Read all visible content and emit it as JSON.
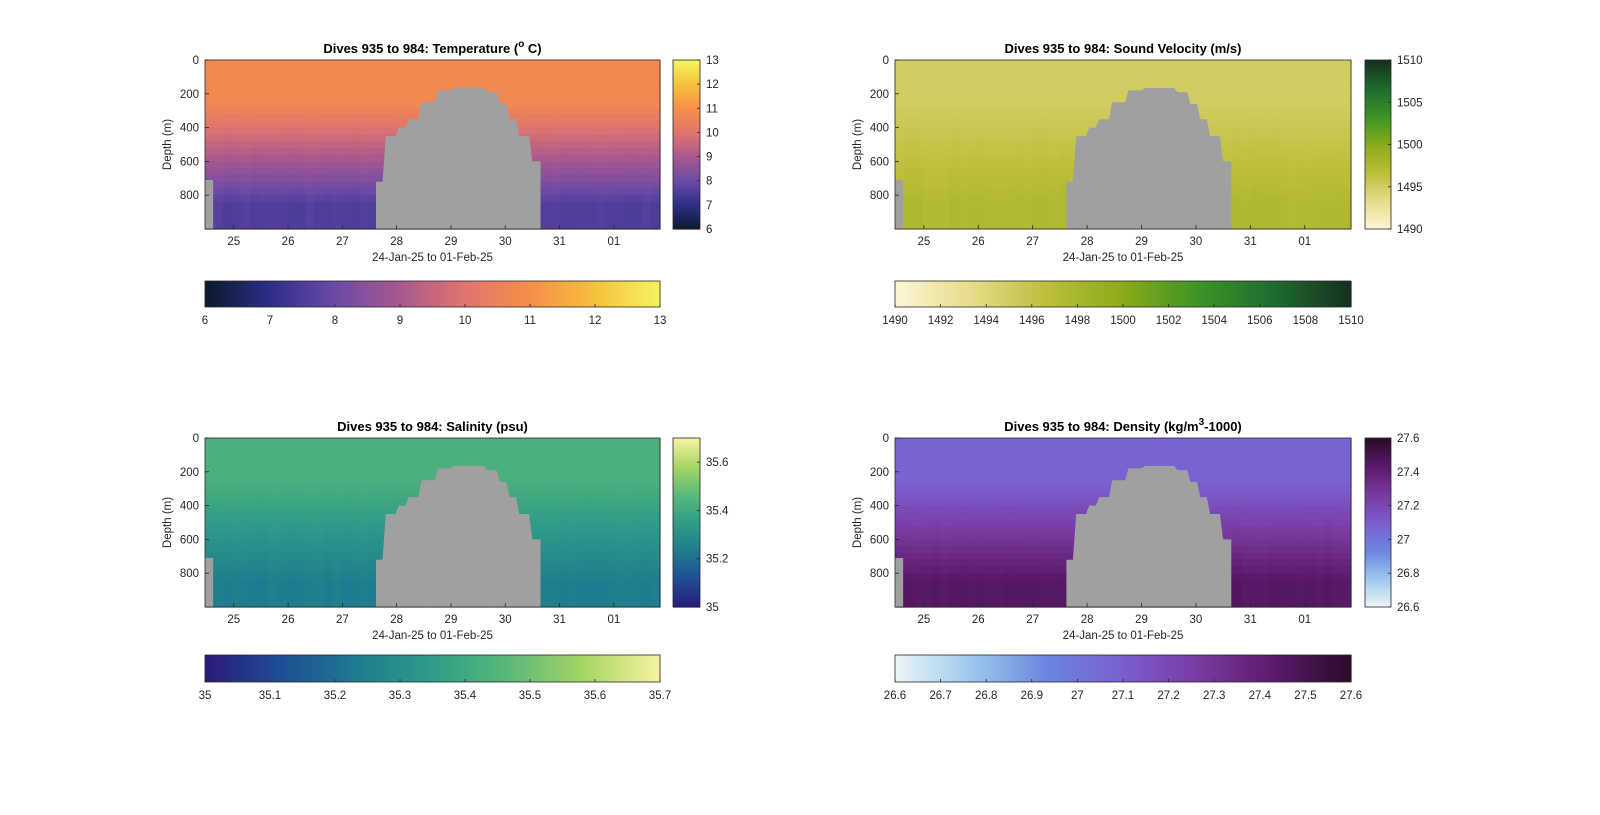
{
  "chart_data": [
    {
      "type": "heatmap",
      "title_prefix": "Dives 935 to 984: Temperature (",
      "title_sup": "o",
      "title_suffix": " C)",
      "xlabel": "24-Jan-25 to 01-Feb-25",
      "ylabel": "Depth (m)",
      "x_tick_labels": [
        "25",
        "26",
        "27",
        "28",
        "29",
        "30",
        "31",
        "01"
      ],
      "y_tick_labels": [
        "0",
        "200",
        "400",
        "600",
        "800"
      ],
      "y_ticks": [
        0,
        200,
        400,
        600,
        800
      ],
      "ylim": [
        0,
        1000
      ],
      "y_reversed": true,
      "colorbar_ticks": [
        6,
        7,
        8,
        9,
        10,
        11,
        12,
        13
      ],
      "colorbar_tick_labels": [
        "6",
        "7",
        "8",
        "9",
        "10",
        "11",
        "12",
        "13"
      ],
      "clim": [
        6,
        13
      ],
      "colormap": [
        "#0a1a2a",
        "#2c2e88",
        "#6b4aa6",
        "#a8588f",
        "#e0746e",
        "#f78e48",
        "#f6c13c",
        "#f4f55e"
      ],
      "surface_value": 10.8,
      "deep_value": 7.6
    },
    {
      "type": "heatmap",
      "title_prefix": "Dives 935 to 984: Sound Velocity (m/s)",
      "title_sup": "",
      "title_suffix": "",
      "xlabel": "24-Jan-25 to 01-Feb-25",
      "ylabel": "Depth (m)",
      "x_tick_labels": [
        "25",
        "26",
        "27",
        "28",
        "29",
        "30",
        "31",
        "01"
      ],
      "y_tick_labels": [
        "0",
        "200",
        "400",
        "600",
        "800"
      ],
      "y_ticks": [
        0,
        200,
        400,
        600,
        800
      ],
      "ylim": [
        0,
        1000
      ],
      "y_reversed": true,
      "colorbar_ticks": [
        1490,
        1495,
        1500,
        1505,
        1510
      ],
      "colorbar_tick_labels": [
        "1490",
        "1495",
        "1500",
        "1505",
        "1510"
      ],
      "h_colorbar_ticks": [
        1490,
        1492,
        1494,
        1496,
        1498,
        1500,
        1502,
        1504,
        1506,
        1508,
        1510
      ],
      "h_colorbar_tick_labels": [
        "1490",
        "1492",
        "1494",
        "1496",
        "1498",
        "1500",
        "1502",
        "1504",
        "1506",
        "1508",
        "1510"
      ],
      "clim": [
        1490,
        1510
      ],
      "colormap": [
        "#fdf6d6",
        "#e6dc8a",
        "#bdbe3a",
        "#8aaa1a",
        "#3c9425",
        "#1e6b30",
        "#17301c"
      ],
      "surface_value": 1495,
      "deep_value": 1497.5
    },
    {
      "type": "heatmap",
      "title_prefix": "Dives 935 to 984: Salinity (psu)",
      "title_sup": "",
      "title_suffix": "",
      "xlabel": "24-Jan-25 to 01-Feb-25",
      "ylabel": "Depth (m)",
      "x_tick_labels": [
        "25",
        "26",
        "27",
        "28",
        "29",
        "30",
        "31",
        "01"
      ],
      "y_tick_labels": [
        "0",
        "200",
        "400",
        "600",
        "800"
      ],
      "y_ticks": [
        0,
        200,
        400,
        600,
        800
      ],
      "ylim": [
        0,
        1000
      ],
      "y_reversed": true,
      "colorbar_ticks": [
        35.2,
        35.4,
        35.6
      ],
      "colorbar_tick_labels": [
        "35",
        "35.2",
        "35.4",
        "35.6"
      ],
      "colorbar_ticks_full": [
        35,
        35.2,
        35.4,
        35.6
      ],
      "h_colorbar_ticks": [
        35,
        35.1,
        35.2,
        35.3,
        35.4,
        35.5,
        35.6,
        35.7
      ],
      "h_colorbar_tick_labels": [
        "35",
        "35.1",
        "35.2",
        "35.3",
        "35.4",
        "35.5",
        "35.6",
        "35.7"
      ],
      "clim": [
        35,
        35.7
      ],
      "colormap": [
        "#2a1a7a",
        "#1f4d95",
        "#1f7b8f",
        "#2f9c88",
        "#5ab879",
        "#a6d665",
        "#f8f2a0"
      ],
      "surface_value": 35.43,
      "deep_value": 35.24
    },
    {
      "type": "heatmap",
      "title_prefix": "Dives 935 to 984: Density (kg/m",
      "title_sup": "3",
      "title_suffix": "-1000)",
      "xlabel": "24-Jan-25 to 01-Feb-25",
      "ylabel": "Depth (m)",
      "x_tick_labels": [
        "25",
        "26",
        "27",
        "28",
        "29",
        "30",
        "31",
        "01"
      ],
      "y_tick_labels": [
        "0",
        "200",
        "400",
        "600",
        "800"
      ],
      "y_ticks": [
        0,
        200,
        400,
        600,
        800
      ],
      "ylim": [
        0,
        1000
      ],
      "y_reversed": true,
      "colorbar_ticks": [
        26.6,
        26.8,
        27,
        27.2,
        27.4,
        27.6
      ],
      "colorbar_tick_labels": [
        "26.6",
        "26.8",
        "27",
        "27.2",
        "27.4",
        "27.6"
      ],
      "h_colorbar_ticks": [
        26.6,
        26.7,
        26.8,
        26.9,
        27,
        27.1,
        27.2,
        27.3,
        27.4,
        27.5,
        27.6
      ],
      "h_colorbar_tick_labels": [
        "26.6",
        "26.7",
        "26.8",
        "26.9",
        "27",
        "27.1",
        "27.2",
        "27.3",
        "27.4",
        "27.5",
        "27.6"
      ],
      "clim": [
        26.6,
        27.6
      ],
      "colormap": [
        "#eef6f6",
        "#9cc9ec",
        "#6a86e0",
        "#7b5ed0",
        "#7a3aa0",
        "#5a1a6a",
        "#2a0a28"
      ],
      "surface_value": 27.08,
      "deep_value": 27.45
    }
  ],
  "colors": {
    "no_data": "#a0a0a0",
    "axes": "#262626"
  }
}
